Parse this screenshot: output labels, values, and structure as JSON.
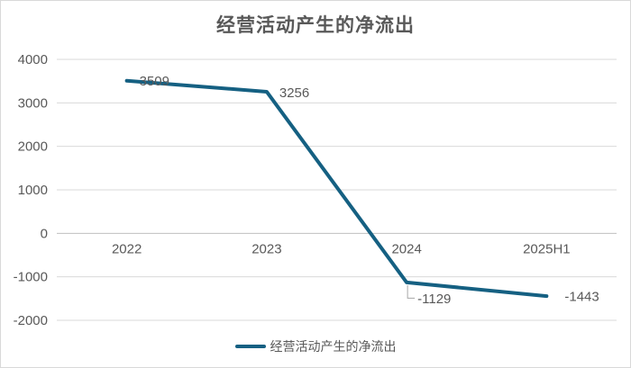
{
  "chart": {
    "title": "经营活动产生的净流出",
    "legend": {
      "label": "经营活动产生的净流出",
      "swatch_color": "#156082"
    }
  },
  "chart_data": {
    "type": "line",
    "title": "经营活动产生的净流出",
    "categories": [
      "2022",
      "2023",
      "2024",
      "2025H1"
    ],
    "series": [
      {
        "name": "经营活动产生的净流出",
        "values": [
          3509,
          3256,
          -1129,
          -1443
        ],
        "color": "#156082"
      }
    ],
    "data_labels": [
      "3509",
      "3256",
      "-1129",
      "-1443"
    ],
    "xlabel": "",
    "ylabel": "",
    "ylim": [
      -2000,
      4000
    ],
    "yticks": [
      4000,
      3000,
      2000,
      1000,
      0,
      -1000,
      -2000
    ],
    "ytick_labels": [
      "4000",
      "3000",
      "2000",
      "1000",
      "0",
      "-1000",
      "-2000"
    ],
    "grid": true,
    "legend_position": "bottom",
    "colors": {
      "line": "#156082",
      "gridline": "#d9d9d9",
      "axis_line": "#bfbfbf",
      "text": "#595959",
      "leader_line": "#a6a6a6"
    }
  }
}
